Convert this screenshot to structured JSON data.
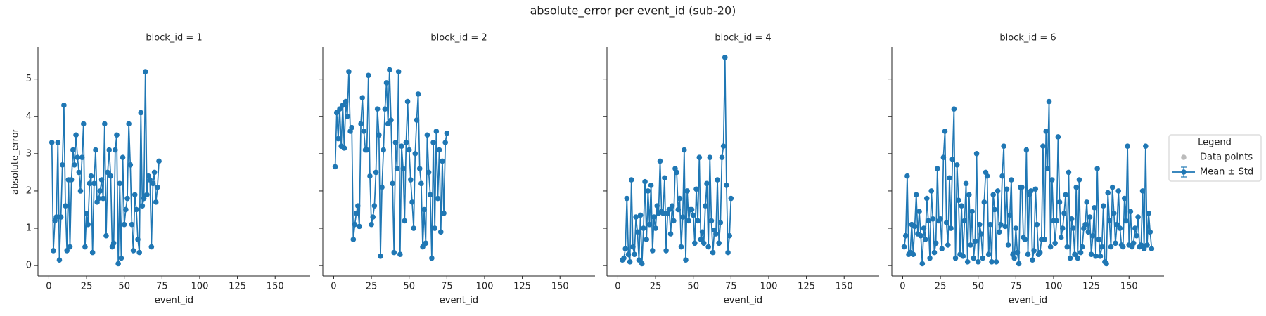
{
  "title": "absolute_error per event_id (sub-20)",
  "legend": {
    "title": "Legend",
    "entries": [
      {
        "label": "Data points",
        "color": "#bbbbbb"
      },
      {
        "label": "Mean ± Std",
        "color": "#1f77b4"
      }
    ]
  },
  "chart_data": [
    {
      "type": "line",
      "title": "block_id = 1",
      "x_label": "event_id",
      "y_label": "absolute_error",
      "x": [
        2,
        3,
        4,
        5,
        6,
        7,
        8,
        9,
        10,
        11,
        12,
        13,
        14,
        15,
        16,
        17,
        18,
        19,
        20,
        21,
        22,
        23,
        24,
        25,
        26,
        27,
        28,
        29,
        30,
        31,
        32,
        33,
        34,
        35,
        36,
        37,
        38,
        39,
        40,
        41,
        42,
        43,
        44,
        45,
        46,
        47,
        48,
        49,
        50,
        51,
        52,
        53,
        54,
        55,
        56,
        57,
        58,
        59,
        60,
        61,
        62,
        63,
        64,
        65,
        66,
        67,
        68,
        69,
        70,
        71,
        72,
        73
      ],
      "series": [
        {
          "color": "#1f77b4",
          "values": [
            3.3,
            0.4,
            1.2,
            1.3,
            3.3,
            0.15,
            1.3,
            2.7,
            4.3,
            1.6,
            0.4,
            2.3,
            0.5,
            2.3,
            3.1,
            2.7,
            3.5,
            2.9,
            2.5,
            2.0,
            2.9,
            3.8,
            0.5,
            1.4,
            1.1,
            2.2,
            2.4,
            0.35,
            2.2,
            3.1,
            1.7,
            1.8,
            2.0,
            2.3,
            1.8,
            3.8,
            0.8,
            2.5,
            3.1,
            2.4,
            0.5,
            0.6,
            3.1,
            3.5,
            0.05,
            2.2,
            0.2,
            2.9,
            1.1,
            1.5,
            1.8,
            3.8,
            2.7,
            1.1,
            0.4,
            1.9,
            1.5,
            0.7,
            0.35,
            4.1,
            1.6,
            1.8,
            5.2,
            1.9,
            2.4,
            2.3,
            0.5,
            2.2,
            2.5,
            1.7,
            2.1,
            2.8
          ]
        }
      ],
      "xlim": [
        -7.2,
        173.2
      ],
      "xticks": [
        0,
        25,
        50,
        75,
        100,
        125,
        150
      ],
      "ylim": [
        -0.28,
        5.86
      ],
      "yticks": [
        0,
        1,
        2,
        3,
        4,
        5
      ]
    },
    {
      "type": "line",
      "title": "block_id = 2",
      "x_label": "event_id",
      "x": [
        1,
        2,
        3,
        4,
        5,
        6,
        7,
        8,
        9,
        10,
        11,
        12,
        13,
        14,
        15,
        16,
        17,
        18,
        19,
        20,
        21,
        22,
        23,
        24,
        25,
        26,
        27,
        28,
        29,
        30,
        31,
        32,
        33,
        34,
        35,
        36,
        37,
        38,
        39,
        40,
        41,
        42,
        43,
        44,
        45,
        46,
        47,
        48,
        49,
        50,
        51,
        52,
        53,
        54,
        55,
        56,
        57,
        58,
        59,
        60,
        61,
        62,
        63,
        64,
        65,
        66,
        67,
        68,
        69,
        70,
        71,
        72,
        73,
        74,
        75
      ],
      "series": [
        {
          "color": "#1f77b4",
          "values": [
            2.65,
            4.1,
            3.4,
            4.2,
            3.2,
            4.3,
            3.15,
            4.4,
            4.0,
            5.2,
            3.6,
            3.7,
            0.7,
            1.1,
            1.4,
            1.6,
            1.05,
            3.8,
            4.5,
            3.6,
            3.1,
            3.1,
            5.1,
            2.4,
            1.1,
            1.3,
            1.6,
            2.5,
            4.2,
            3.5,
            0.25,
            2.1,
            3.1,
            4.2,
            4.9,
            3.8,
            5.25,
            3.9,
            2.2,
            0.35,
            3.3,
            2.6,
            5.2,
            0.3,
            3.2,
            2.6,
            1.2,
            3.3,
            4.4,
            3.1,
            2.3,
            1.7,
            1.0,
            3.0,
            3.9,
            4.6,
            2.6,
            2.2,
            0.5,
            1.5,
            0.6,
            3.5,
            2.5,
            1.9,
            0.2,
            3.3,
            1.0,
            3.6,
            1.8,
            3.1,
            0.9,
            2.8,
            1.4,
            3.3,
            3.55
          ]
        }
      ],
      "xlim": [
        -7.2,
        173.2
      ],
      "xticks": [
        0,
        25,
        50,
        75,
        100,
        125,
        150
      ],
      "ylim": [
        -0.28,
        5.86
      ],
      "yticks": [
        0,
        1,
        2,
        3,
        4,
        5
      ]
    },
    {
      "type": "line",
      "title": "block_id = 4",
      "x_label": "event_id",
      "x": [
        3,
        4,
        5,
        6,
        7,
        8,
        9,
        10,
        11,
        12,
        13,
        14,
        15,
        16,
        17,
        18,
        19,
        20,
        21,
        22,
        23,
        24,
        25,
        26,
        27,
        28,
        29,
        30,
        31,
        32,
        33,
        34,
        35,
        36,
        37,
        38,
        39,
        40,
        41,
        42,
        43,
        44,
        45,
        46,
        47,
        48,
        49,
        50,
        51,
        52,
        53,
        54,
        55,
        56,
        57,
        58,
        59,
        60,
        61,
        62,
        63,
        64,
        65,
        66,
        67,
        68,
        69,
        70,
        71,
        72,
        73,
        74,
        75
      ],
      "series": [
        {
          "color": "#1f77b4",
          "values": [
            0.15,
            0.2,
            0.45,
            1.8,
            0.3,
            0.1,
            2.3,
            0.5,
            0.3,
            1.3,
            0.9,
            0.15,
            1.35,
            0.05,
            1.0,
            2.25,
            0.7,
            2.0,
            1.1,
            2.15,
            0.4,
            1.3,
            1.0,
            1.6,
            1.4,
            2.8,
            1.45,
            1.4,
            2.35,
            0.4,
            1.4,
            1.5,
            0.85,
            1.6,
            1.2,
            2.6,
            2.5,
            1.5,
            1.8,
            0.5,
            1.3,
            3.1,
            0.15,
            2.0,
            1.2,
            1.5,
            1.5,
            1.35,
            0.6,
            2.05,
            1.2,
            2.9,
            0.7,
            0.9,
            0.6,
            1.6,
            2.2,
            0.5,
            2.9,
            1.2,
            0.35,
            0.95,
            0.85,
            2.3,
            0.6,
            1.15,
            2.9,
            3.2,
            5.58,
            2.15,
            0.35,
            0.8,
            1.8
          ]
        }
      ],
      "xlim": [
        -7.2,
        173.2
      ],
      "xticks": [
        0,
        25,
        50,
        75,
        100,
        125,
        150
      ],
      "ylim": [
        -0.28,
        5.86
      ],
      "yticks": [
        0,
        1,
        2,
        3,
        4,
        5
      ]
    },
    {
      "type": "line",
      "title": "block_id = 6",
      "x_label": "event_id",
      "x": [
        1,
        2,
        3,
        4,
        5,
        6,
        7,
        8,
        9,
        10,
        11,
        12,
        13,
        14,
        15,
        16,
        17,
        18,
        19,
        20,
        21,
        22,
        23,
        24,
        25,
        26,
        27,
        28,
        29,
        30,
        31,
        32,
        33,
        34,
        35,
        36,
        37,
        38,
        39,
        40,
        41,
        42,
        43,
        44,
        45,
        46,
        47,
        48,
        49,
        50,
        51,
        52,
        53,
        54,
        55,
        56,
        57,
        58,
        59,
        60,
        61,
        62,
        63,
        64,
        65,
        66,
        67,
        68,
        69,
        70,
        71,
        72,
        73,
        74,
        75,
        76,
        77,
        78,
        79,
        80,
        81,
        82,
        83,
        84,
        85,
        86,
        87,
        88,
        89,
        90,
        91,
        92,
        93,
        94,
        95,
        96,
        97,
        98,
        99,
        100,
        101,
        102,
        103,
        104,
        105,
        106,
        107,
        108,
        109,
        110,
        111,
        112,
        113,
        114,
        115,
        116,
        117,
        118,
        119,
        120,
        121,
        122,
        123,
        124,
        125,
        126,
        127,
        128,
        129,
        130,
        131,
        132,
        133,
        134,
        135,
        136,
        137,
        138,
        139,
        140,
        141,
        142,
        143,
        144,
        145,
        146,
        147,
        148,
        149,
        150,
        151,
        152,
        153,
        154,
        155,
        156,
        157,
        158,
        159,
        160,
        161,
        162,
        163,
        164,
        165
      ],
      "series": [
        {
          "color": "#1f77b4",
          "values": [
            0.5,
            0.8,
            2.4,
            0.3,
            0.35,
            1.1,
            0.3,
            1.05,
            1.9,
            0.85,
            1.45,
            0.8,
            0.05,
            1.0,
            0.7,
            1.8,
            1.2,
            0.2,
            2.0,
            1.25,
            0.35,
            0.6,
            2.6,
            1.2,
            1.25,
            0.45,
            2.9,
            3.6,
            1.15,
            0.55,
            2.35,
            1.0,
            2.85,
            4.2,
            0.2,
            2.7,
            1.75,
            0.3,
            1.6,
            0.25,
            1.2,
            2.2,
            0.1,
            1.9,
            0.55,
            1.45,
            0.2,
            0.65,
            3.0,
            0.1,
            1.1,
            0.85,
            0.2,
            1.7,
            2.5,
            2.4,
            0.3,
            1.1,
            0.1,
            1.9,
            1.5,
            0.1,
            2.0,
            0.9,
            1.1,
            2.4,
            3.2,
            1.05,
            2.05,
            0.55,
            1.35,
            2.3,
            0.3,
            0.2,
            1.0,
            0.35,
            0.05,
            2.1,
            2.1,
            0.75,
            0.7,
            3.1,
            0.3,
            1.9,
            2.0,
            0.15,
            0.4,
            2.05,
            1.1,
            0.3,
            0.35,
            0.7,
            3.2,
            0.7,
            3.6,
            2.6,
            4.4,
            0.5,
            2.3,
            1.2,
            0.6,
            1.2,
            3.45,
            1.7,
            0.75,
            1.0,
            1.4,
            1.9,
            0.5,
            2.5,
            0.2,
            1.25,
            1.0,
            0.3,
            2.1,
            0.2,
            2.3,
            0.35,
            0.5,
            1.0,
            1.1,
            1.7,
            0.9,
            1.3,
            0.3,
            0.8,
            1.55,
            0.25,
            2.6,
            0.7,
            0.25,
            0.5,
            1.6,
            0.1,
            0.05,
            1.95,
            1.2,
            0.5,
            2.1,
            1.4,
            0.6,
            1.1,
            2.0,
            1.0,
            0.55,
            0.5,
            1.8,
            1.2,
            3.2,
            0.55,
            1.45,
            0.5,
            0.6,
            1.0,
            0.8,
            1.3,
            0.5,
            0.55,
            2.0,
            0.45,
            3.2,
            0.55,
            1.4,
            0.9,
            0.45
          ]
        }
      ],
      "xlim": [
        -7.2,
        173.2
      ],
      "xticks": [
        0,
        25,
        50,
        75,
        100,
        125,
        150
      ],
      "ylim": [
        -0.28,
        5.86
      ],
      "yticks": [
        0,
        1,
        2,
        3,
        4,
        5
      ]
    }
  ]
}
